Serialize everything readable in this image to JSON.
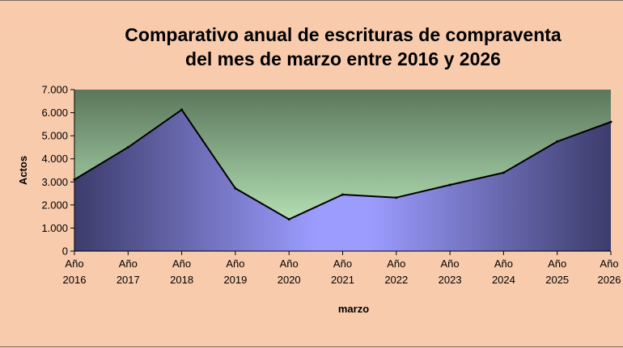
{
  "chart_data": {
    "type": "area",
    "title": [
      "Comparativo anual de escrituras de compraventa",
      "del mes de marzo entre 2016 y 2026"
    ],
    "xlabel": "marzo",
    "ylabel": "Actos",
    "ylim": [
      0,
      7000
    ],
    "y_ticks": [
      "0",
      "1.000",
      "2.000",
      "3.000",
      "4.000",
      "5.000",
      "6.000",
      "7.000"
    ],
    "categories": [
      [
        "Año",
        "2016"
      ],
      [
        "Año",
        "2017"
      ],
      [
        "Año",
        "2018"
      ],
      [
        "Año",
        "2019"
      ],
      [
        "Año",
        "2020"
      ],
      [
        "Año",
        "2021"
      ],
      [
        "Año",
        "2022"
      ],
      [
        "Año",
        "2023"
      ],
      [
        "Año",
        "2024"
      ],
      [
        "Año",
        "2025"
      ],
      [
        "Año",
        "2026"
      ]
    ],
    "series": [
      {
        "values": [
          3100,
          4500,
          6130,
          2720,
          1380,
          2450,
          2320,
          2870,
          3400,
          4750,
          5600
        ]
      }
    ],
    "grid": false,
    "colors": {
      "page_background": "#f8cbad",
      "plot_top": "#5a765b",
      "plot_bottom": "#c8f8c8",
      "area_edge": "#3c3c6c",
      "area_center": "#9c9cff",
      "line": "#000000"
    }
  }
}
